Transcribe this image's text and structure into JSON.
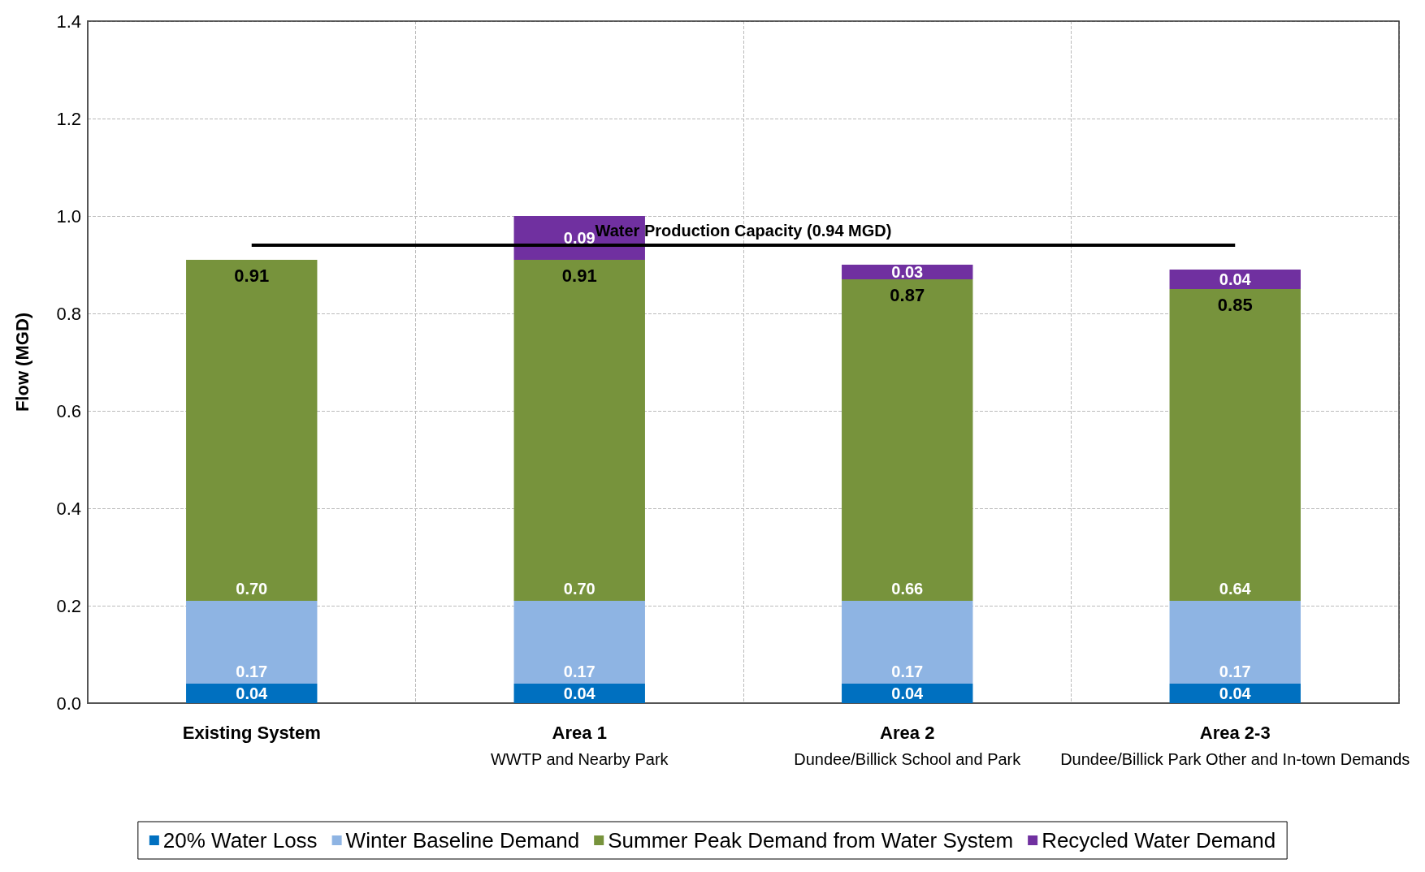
{
  "chart_data": {
    "type": "bar",
    "stacked": true,
    "ylabel": "Flow (MGD)",
    "categories": [
      "Existing System",
      "Area 1\nWWTP and Nearby Park",
      "Area 2\nDundee/Billick School and Park",
      "Area 2-3\nDundee/Billick Park Other and In-town Demands"
    ],
    "series": [
      {
        "name": "20% Water Loss",
        "color": "#0070c0",
        "values": [
          0.04,
          0.04,
          0.04,
          0.04
        ],
        "value_labels": [
          "0.04",
          "0.04",
          "0.04",
          "0.04"
        ]
      },
      {
        "name": "Winter Baseline Demand",
        "color": "#8eb4e3",
        "values": [
          0.17,
          0.17,
          0.17,
          0.17
        ],
        "value_labels": [
          "0.17",
          "0.17",
          "0.17",
          "0.17"
        ]
      },
      {
        "name": "Summer Peak Demand from Water System",
        "color": "#77933c",
        "values": [
          0.7,
          0.7,
          0.66,
          0.64
        ],
        "value_labels": [
          "0.70",
          "0.70",
          "0.66",
          "0.64"
        ]
      },
      {
        "name": "Recycled Water Demand",
        "color": "#7030a0",
        "values": [
          null,
          0.09,
          0.03,
          0.04
        ],
        "value_labels": [
          null,
          "0.09",
          "0.03",
          "0.04"
        ]
      }
    ],
    "annotations": [
      {
        "text": "0.91",
        "x": "Existing System",
        "y": 0.91
      },
      {
        "text": "0.91",
        "x": "Area 1\nWWTP and Nearby Park",
        "y": 0.91
      },
      {
        "text": "0.87",
        "x": "Area 2\nDundee/Billick School and Park",
        "y": 0.87
      },
      {
        "text": "0.85",
        "x": "Area 2-3\nDundee/Billick Park Other and In-town Demands",
        "y": 0.85
      }
    ],
    "ylim": [
      0,
      1.4
    ],
    "yticks": [
      {
        "value": 0,
        "label": "0.0"
      },
      {
        "value": 0.2,
        "label": "0.2"
      },
      {
        "value": 0.4,
        "label": "0.4"
      },
      {
        "value": 0.6,
        "label": "0.6"
      },
      {
        "value": 0.8,
        "label": "0.8"
      },
      {
        "value": 1,
        "label": "1.0"
      },
      {
        "value": 1.2,
        "label": "1.2"
      },
      {
        "value": 1.4,
        "label": "1.4"
      }
    ],
    "ref_lines": [
      {
        "axis": "y",
        "value": 0.94,
        "label": "Water Production Capacity (0.94 MGD)",
        "color": "#000000"
      }
    ],
    "grid": true,
    "legend": "bottom"
  }
}
